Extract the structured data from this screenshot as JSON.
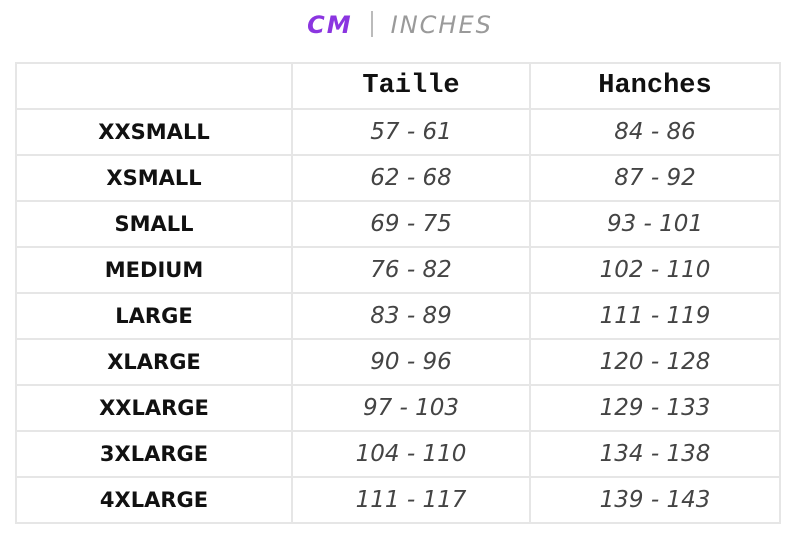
{
  "unit_toggle": {
    "active": "CM",
    "inactive": "INCHES",
    "active_color": "#8b35e0"
  },
  "table": {
    "headers": [
      "",
      "Taille",
      "Hanches"
    ],
    "rows": [
      {
        "size": "XXSMALL",
        "taille": "57 - 61",
        "hanches": "84 - 86"
      },
      {
        "size": "XSMALL",
        "taille": "62 - 68",
        "hanches": "87 - 92"
      },
      {
        "size": "SMALL",
        "taille": "69 - 75",
        "hanches": "93 - 101"
      },
      {
        "size": "MEDIUM",
        "taille": "76 - 82",
        "hanches": "102 - 110"
      },
      {
        "size": "LARGE",
        "taille": "83 - 89",
        "hanches": "111 - 119"
      },
      {
        "size": "XLARGE",
        "taille": "90 - 96",
        "hanches": "120 - 128"
      },
      {
        "size": "XXLARGE",
        "taille": "97 - 103",
        "hanches": "129 - 133"
      },
      {
        "size": "3XLARGE",
        "taille": "104 - 110",
        "hanches": "134 - 138"
      },
      {
        "size": "4XLARGE",
        "taille": "111 - 117",
        "hanches": "139 - 143"
      }
    ]
  }
}
